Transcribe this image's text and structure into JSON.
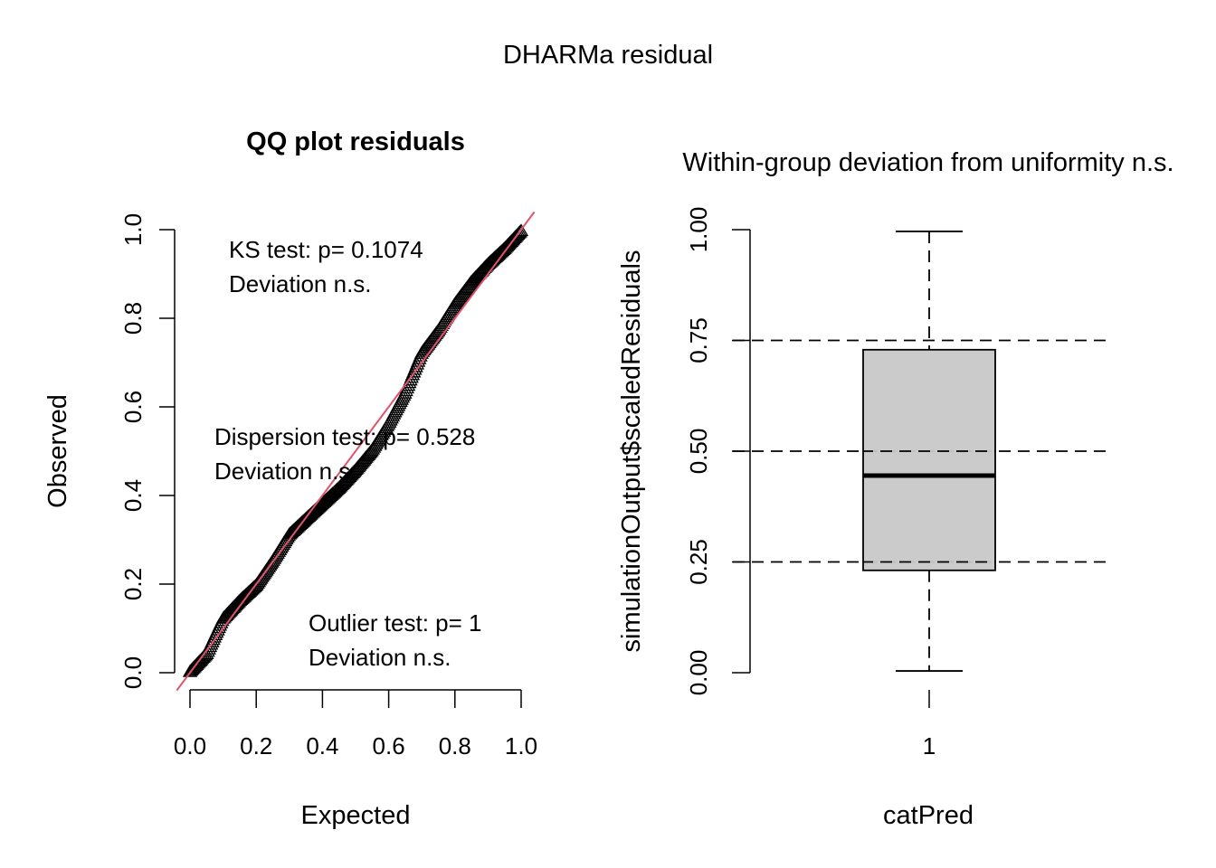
{
  "page_title": "DHARMa residual",
  "chart_data": [
    {
      "type": "scatter",
      "title": "QQ plot residuals",
      "xlabel": "Expected",
      "ylabel": "Observed",
      "xlim": [
        0,
        1
      ],
      "ylim": [
        0,
        1
      ],
      "x_ticks": [
        "0.0",
        "0.2",
        "0.4",
        "0.6",
        "0.8",
        "1.0"
      ],
      "y_ticks": [
        "0.0",
        "0.2",
        "0.4",
        "0.6",
        "0.8",
        "1.0"
      ],
      "marker": "triangle-open",
      "reference_line": {
        "slope": 1,
        "intercept": 0,
        "color": "#DF536B"
      },
      "series": [
        {
          "name": "residuals",
          "x": [
            0.0,
            0.05,
            0.1,
            0.15,
            0.2,
            0.25,
            0.3,
            0.35,
            0.4,
            0.45,
            0.5,
            0.55,
            0.6,
            0.65,
            0.7,
            0.75,
            0.8,
            0.85,
            0.9,
            0.95,
            1.0
          ],
          "y": [
            0.0,
            0.04,
            0.12,
            0.16,
            0.195,
            0.25,
            0.31,
            0.345,
            0.38,
            0.415,
            0.455,
            0.5,
            0.56,
            0.63,
            0.72,
            0.77,
            0.83,
            0.88,
            0.92,
            0.955,
            0.995
          ]
        }
      ],
      "annotations": [
        {
          "line1": "KS test: p= 0.1074",
          "line2": "Deviation  n.s."
        },
        {
          "line1": "Dispersion test: p= 0.528",
          "line2": "Deviation  n.s."
        },
        {
          "line1": "Outlier test: p= 1",
          "line2": "Deviation  n.s."
        }
      ]
    },
    {
      "type": "box",
      "title": "Within-group deviation from uniformity n.s.",
      "xlabel": "catPred",
      "ylabel": "simulationOutput$scaledResiduals",
      "ylim": [
        0,
        1
      ],
      "y_ticks": [
        "0.00",
        "0.25",
        "0.50",
        "0.75",
        "1.00"
      ],
      "reference_lines": [
        0.25,
        0.5,
        0.75
      ],
      "categories": [
        "1"
      ],
      "boxes": [
        {
          "category": "1",
          "whisker_low": 0.004,
          "q1": 0.231,
          "median": 0.445,
          "q3": 0.729,
          "whisker_high": 0.996,
          "fill": "#C8C8C8"
        }
      ]
    }
  ]
}
